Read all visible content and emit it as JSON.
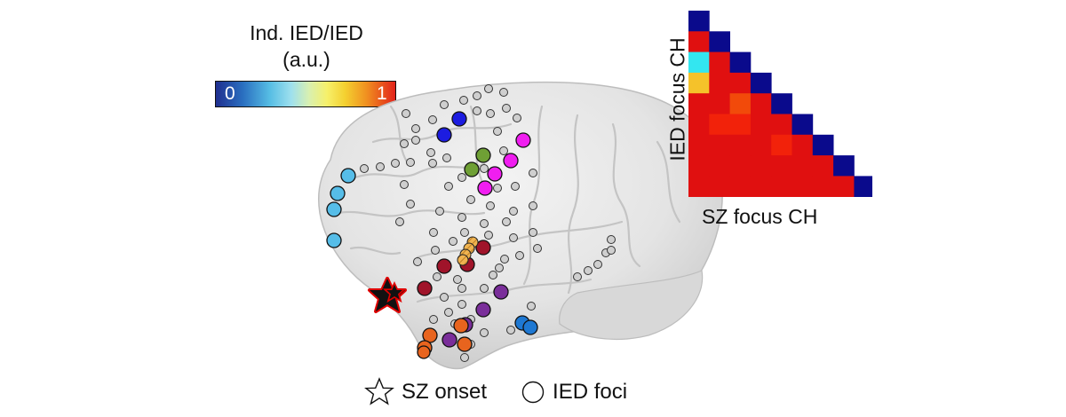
{
  "colorbar": {
    "title_line1": "Ind. IED/IED",
    "title_line2": "(a.u.)",
    "min_label": "0",
    "max_label": "1",
    "colormap": [
      "#1f2f8f",
      "#2a6fc0",
      "#56bde4",
      "#9ee0ee",
      "#d9f0b0",
      "#f6f06a",
      "#f4d030",
      "#f09020",
      "#e2231a"
    ]
  },
  "matrix": {
    "y_label": "IED focus CH",
    "x_label": "SZ focus CH",
    "size": 9,
    "diagonal_color": "#0a0a8c",
    "offdiag_color": "#e01010",
    "special_cells": [
      {
        "row": 2,
        "col": 0,
        "color": "#33e6f0"
      },
      {
        "row": 3,
        "col": 0,
        "color": "#f5c22a"
      },
      {
        "row": 4,
        "col": 2,
        "color": "#f24a0a"
      },
      {
        "row": 5,
        "col": 1,
        "color": "#f2220a"
      },
      {
        "row": 5,
        "col": 2,
        "color": "#f2220a"
      },
      {
        "row": 6,
        "col": 4,
        "color": "#f2220a"
      }
    ]
  },
  "legend": {
    "onset_label": "SZ onset",
    "foci_label": "IED foci"
  },
  "electrode_groups": [
    {
      "name": "light-blue",
      "color": "#56bde8"
    },
    {
      "name": "dark-blue",
      "color": "#1c1ce0"
    },
    {
      "name": "green",
      "color": "#6fa035"
    },
    {
      "name": "magenta",
      "color": "#f01ef0"
    },
    {
      "name": "dark-red",
      "color": "#a0142a"
    },
    {
      "name": "purple",
      "color": "#7a2e9a"
    },
    {
      "name": "orange",
      "color": "#e8641e"
    },
    {
      "name": "cobalt",
      "color": "#1e78d2"
    },
    {
      "name": "hatched-strip",
      "color": "#f0b450"
    }
  ],
  "icons": {
    "onset": "star-icon",
    "foci": "circle-icon"
  }
}
